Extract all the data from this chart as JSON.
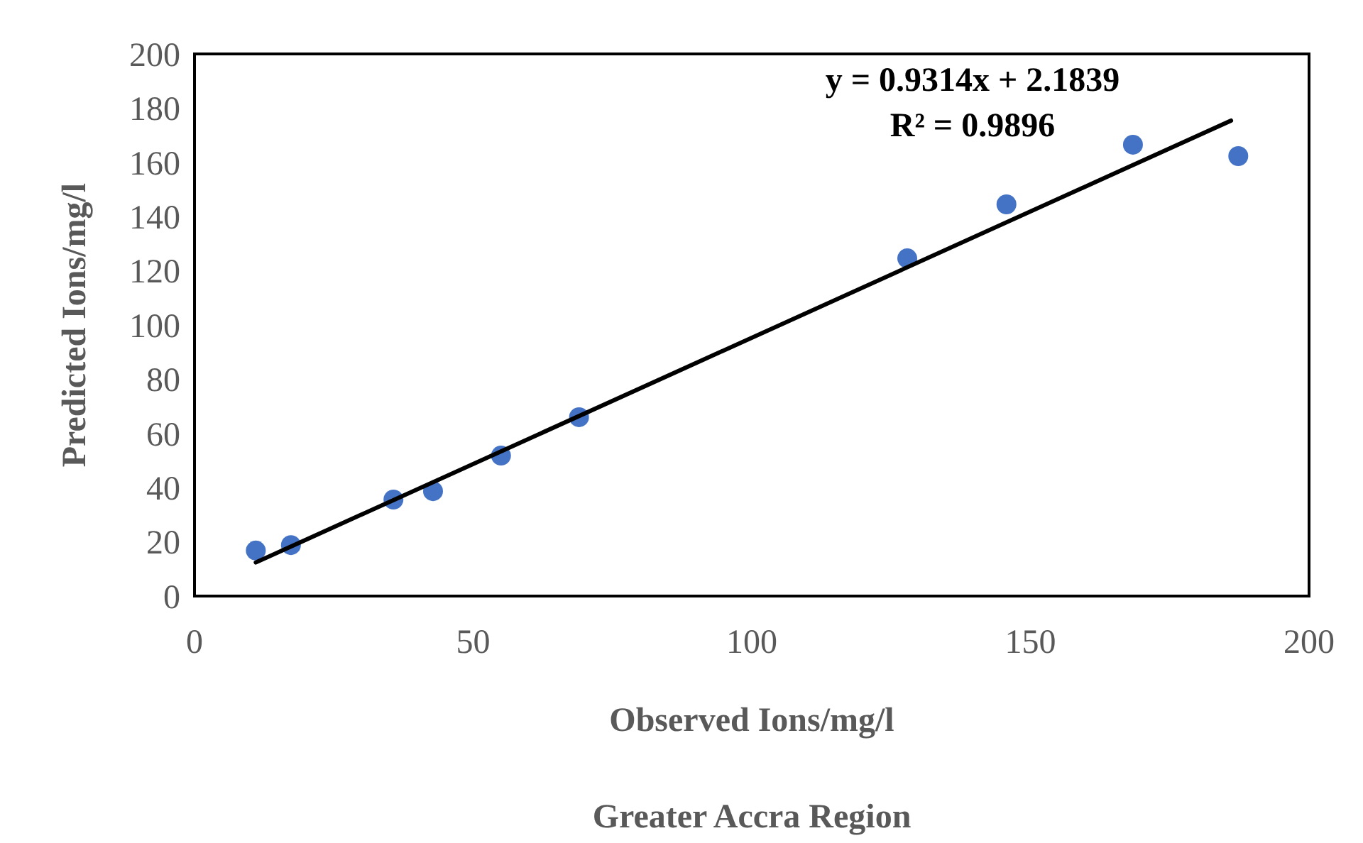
{
  "chart_data": {
    "type": "scatter",
    "title": "Greater Accra Region",
    "xlabel": "Observed Ions/mg/l",
    "ylabel": "Predicted Ions/mg/l",
    "annotations": [
      "y = 0.9314x + 2.1839",
      "R² = 0.9896"
    ],
    "xlim": [
      0,
      200
    ],
    "xticks": [
      0,
      50,
      100,
      150,
      200
    ],
    "ylim": [
      0,
      200
    ],
    "yticks": [
      0,
      20,
      40,
      60,
      80,
      100,
      120,
      140,
      160,
      180,
      200
    ],
    "grid": false,
    "marker": "circle",
    "series": [
      {
        "color": "#4472c4",
        "x": [
          11,
          17.3,
          35.7,
          42.8,
          55,
          69,
          127.9,
          145.7,
          168.4,
          187.3
        ],
        "values": [
          16.8,
          18.8,
          35.6,
          38.7,
          51.8,
          66,
          124.6,
          144.5,
          166.5,
          162.3
        ]
      },
      {
        "type": "line",
        "color": "#000000",
        "line_style": "solid",
        "marker": "none",
        "x": [
          11,
          186
        ],
        "values": [
          12.4,
          175.4
        ]
      }
    ]
  }
}
